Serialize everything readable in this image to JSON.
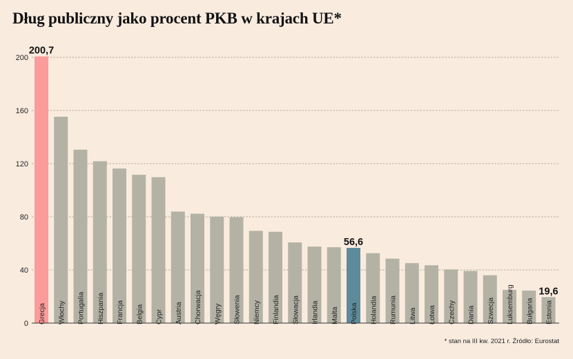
{
  "title": "Dług publiczny jako procent PKB w krajach UE*",
  "footnote": "* stan na III kw. 2021 r. Źródło: Eurostat",
  "colors": {
    "default_bar": "#b3b2a5",
    "highlight_greece": "#fb9c9a",
    "highlight_poland": "#5d8b9b",
    "background": "#f9ecdf",
    "grid": "#9e9488"
  },
  "chart_data": {
    "type": "bar",
    "title": "Dług publiczny jako procent PKB w krajach UE*",
    "xlabel": "",
    "ylabel": "",
    "ylim": [
      0,
      200
    ],
    "yticks": [
      0,
      40,
      80,
      120,
      160,
      200
    ],
    "grid": true,
    "categories": [
      "Grecja",
      "Włochy",
      "Portugalia",
      "Hiszpania",
      "Francja",
      "Belgia",
      "Cypr",
      "Austria",
      "Chorwacja",
      "Węgry",
      "Słowenia",
      "Niemcy",
      "Finlandia",
      "Słowacja",
      "Irlandia",
      "Malta",
      "Polska",
      "Holandia",
      "Rumunia",
      "Litwa",
      "Łotwa",
      "Czechy",
      "Dania",
      "Szwecja",
      "Luksemburg",
      "Bułgaria",
      "Estonia"
    ],
    "values": [
      200.7,
      155.3,
      130.5,
      121.8,
      116.3,
      111.6,
      109.8,
      83.9,
      82.3,
      80.1,
      79.7,
      69.4,
      68.7,
      60.7,
      57.6,
      57.1,
      56.6,
      52.6,
      48.5,
      45.1,
      43.5,
      40.4,
      39.2,
      36.0,
      25.0,
      24.5,
      19.6
    ],
    "data_labels": [
      {
        "category": "Grecja",
        "text": "200,7"
      },
      {
        "category": "Polska",
        "text": "56,6"
      },
      {
        "category": "Estonia",
        "text": "19,6"
      }
    ]
  }
}
